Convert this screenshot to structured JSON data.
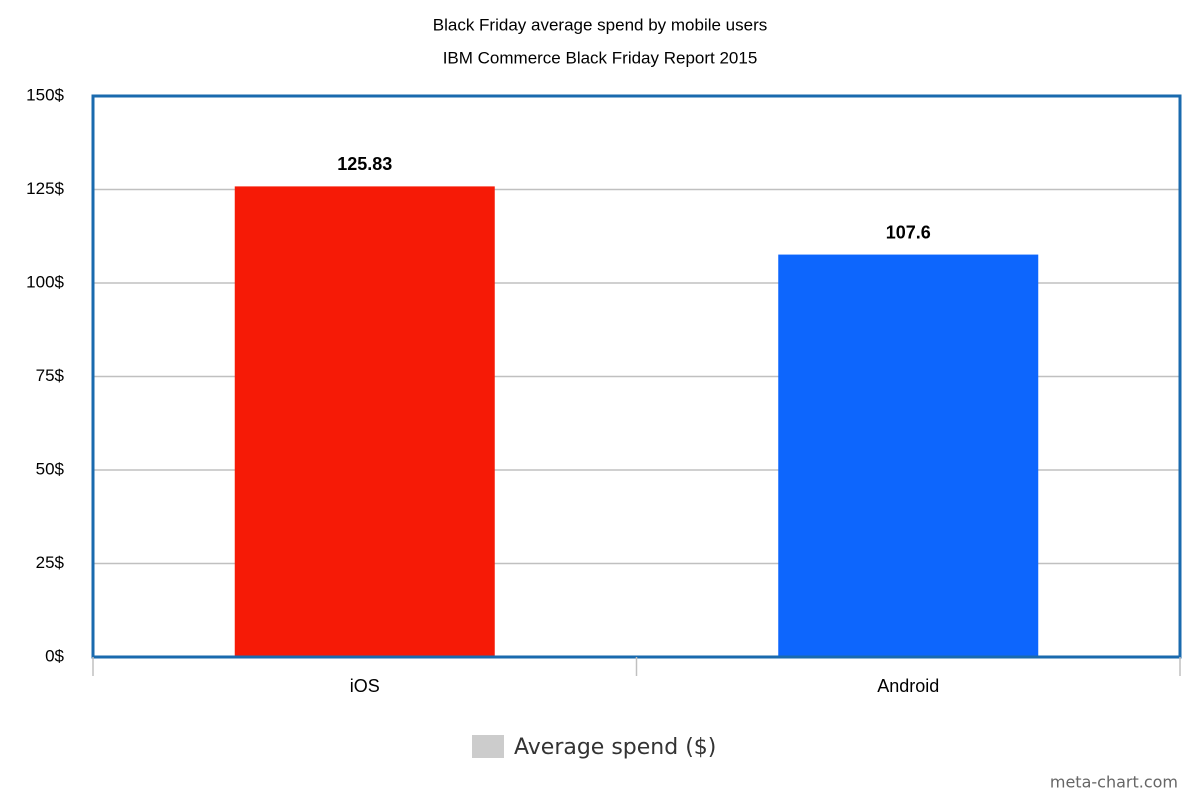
{
  "chart_data": {
    "type": "bar",
    "title": "Black Friday average spend by mobile users",
    "subtitle": "IBM Commerce Black Friday Report 2015",
    "categories": [
      "iOS",
      "Android"
    ],
    "series": [
      {
        "name": "Average spend ($)",
        "color": "#cccccc",
        "values": [
          125.83,
          107.6
        ]
      }
    ],
    "colors": [
      "#f61a06",
      "#0d66fd"
    ],
    "ylim": [
      0,
      150
    ],
    "yticks": [
      {
        "value": 0,
        "label": "0$"
      },
      {
        "value": 25,
        "label": "25$"
      },
      {
        "value": 50,
        "label": "50$"
      },
      {
        "value": 75,
        "label": "75$"
      },
      {
        "value": 100,
        "label": "100$"
      },
      {
        "value": 125,
        "label": "125$"
      },
      {
        "value": 150,
        "label": "150$"
      }
    ],
    "grid": true,
    "legend": "bottom"
  },
  "watermark": "meta-chart.com"
}
